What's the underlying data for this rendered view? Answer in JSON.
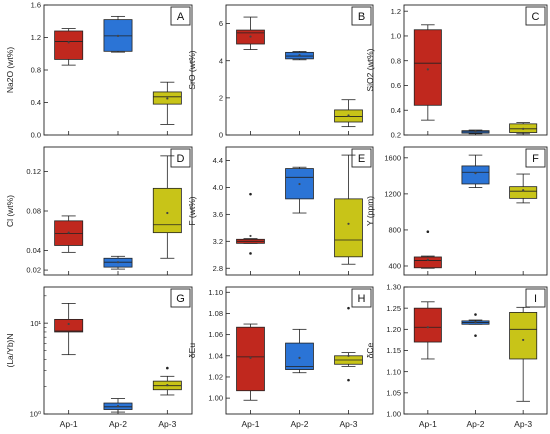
{
  "colors": {
    "Ap-1": "#c0281e",
    "Ap-2": "#2b74d6",
    "Ap-3": "#c8c418"
  },
  "categories": [
    "Ap-1",
    "Ap-2",
    "Ap-3"
  ],
  "chart_data": [
    {
      "type": "box",
      "letter": "A",
      "ylabel": "Na2O (wt%)",
      "scale": "linear",
      "ylim": [
        0,
        1.6
      ],
      "yticks": [
        0.0,
        0.4,
        0.8,
        1.2,
        1.6
      ],
      "tick_labels": [
        "0.0",
        "0.4",
        "0.8",
        "1.2",
        "1.6"
      ],
      "categories": [
        "Ap-1",
        "Ap-2",
        "Ap-3"
      ],
      "boxes": [
        {
          "category": "Ap-1",
          "whisker_low": 0.86,
          "q1": 0.93,
          "median": 1.15,
          "q3": 1.28,
          "whisker_high": 1.31,
          "mean": 1.14,
          "outliers": []
        },
        {
          "category": "Ap-2",
          "whisker_low": 1.02,
          "q1": 1.03,
          "median": 1.22,
          "q3": 1.42,
          "whisker_high": 1.46,
          "mean": 1.22,
          "outliers": []
        },
        {
          "category": "Ap-3",
          "whisker_low": 0.13,
          "q1": 0.38,
          "median": 0.47,
          "q3": 0.53,
          "whisker_high": 0.65,
          "mean": 0.45,
          "outliers": []
        }
      ]
    },
    {
      "type": "box",
      "letter": "B",
      "ylabel": "SrO (wt%)",
      "scale": "linear",
      "ylim": [
        0,
        7
      ],
      "yticks": [
        0,
        2,
        4,
        6
      ],
      "tick_labels": [
        "0",
        "2",
        "4",
        "6"
      ],
      "categories": [
        "Ap-1",
        "Ap-2",
        "Ap-3"
      ],
      "boxes": [
        {
          "category": "Ap-1",
          "whisker_low": 4.6,
          "q1": 4.9,
          "median": 5.5,
          "q3": 5.65,
          "whisker_high": 6.35,
          "mean": 5.3,
          "outliers": []
        },
        {
          "category": "Ap-2",
          "whisker_low": 4.05,
          "q1": 4.1,
          "median": 4.25,
          "q3": 4.45,
          "whisker_high": 4.5,
          "mean": 4.3,
          "outliers": []
        },
        {
          "category": "Ap-3",
          "whisker_low": 0.45,
          "q1": 0.7,
          "median": 1.0,
          "q3": 1.35,
          "whisker_high": 1.9,
          "mean": 1.05,
          "outliers": []
        }
      ]
    },
    {
      "type": "box",
      "letter": "C",
      "ylabel": "SiO2 (wt%)",
      "scale": "linear",
      "ylim": [
        0.2,
        1.25
      ],
      "yticks": [
        0.2,
        0.4,
        0.6,
        0.8,
        1.0,
        1.2
      ],
      "tick_labels": [
        "0.2",
        "0.4",
        "0.6",
        "0.8",
        "1.0",
        "1.2"
      ],
      "categories": [
        "Ap-1",
        "Ap-2",
        "Ap-3"
      ],
      "boxes": [
        {
          "category": "Ap-1",
          "whisker_low": 0.32,
          "q1": 0.44,
          "median": 0.78,
          "q3": 1.05,
          "whisker_high": 1.09,
          "mean": 0.73,
          "outliers": []
        },
        {
          "category": "Ap-2",
          "whisker_low": 0.21,
          "q1": 0.215,
          "median": 0.225,
          "q3": 0.235,
          "whisker_high": 0.24,
          "mean": 0.23,
          "outliers": []
        },
        {
          "category": "Ap-3",
          "whisker_low": 0.21,
          "q1": 0.22,
          "median": 0.25,
          "q3": 0.29,
          "whisker_high": 0.3,
          "mean": 0.25,
          "outliers": []
        }
      ]
    },
    {
      "type": "box",
      "letter": "D",
      "ylabel": "Cl (wt%)",
      "scale": "linear",
      "ylim": [
        0.015,
        0.145
      ],
      "yticks": [
        0.02,
        0.04,
        0.08,
        0.12
      ],
      "tick_labels": [
        "0.02",
        "0.04",
        "0.08",
        "0.12"
      ],
      "categories": [
        "Ap-1",
        "Ap-2",
        "Ap-3"
      ],
      "boxes": [
        {
          "category": "Ap-1",
          "whisker_low": 0.038,
          "q1": 0.045,
          "median": 0.057,
          "q3": 0.07,
          "whisker_high": 0.075,
          "mean": 0.058,
          "outliers": []
        },
        {
          "category": "Ap-2",
          "whisker_low": 0.021,
          "q1": 0.023,
          "median": 0.028,
          "q3": 0.032,
          "whisker_high": 0.034,
          "mean": 0.028,
          "outliers": []
        },
        {
          "category": "Ap-3",
          "whisker_low": 0.032,
          "q1": 0.058,
          "median": 0.066,
          "q3": 0.103,
          "whisker_high": 0.136,
          "mean": 0.078,
          "outliers": []
        }
      ]
    },
    {
      "type": "box",
      "letter": "E",
      "ylabel": "F (wt%)",
      "scale": "linear",
      "ylim": [
        2.7,
        4.6
      ],
      "yticks": [
        2.8,
        3.2,
        3.6,
        4.0,
        4.4
      ],
      "tick_labels": [
        "2.8",
        "3.2",
        "3.6",
        "4.0",
        "4.4"
      ],
      "categories": [
        "Ap-1",
        "Ap-2",
        "Ap-3"
      ],
      "boxes": [
        {
          "category": "Ap-1",
          "whisker_low": 3.17,
          "q1": 3.17,
          "median": 3.2,
          "q3": 3.23,
          "whisker_high": 3.24,
          "mean": 3.28,
          "outliers": [
            3.9,
            3.02
          ]
        },
        {
          "category": "Ap-2",
          "whisker_low": 3.62,
          "q1": 3.83,
          "median": 4.15,
          "q3": 4.28,
          "whisker_high": 4.3,
          "mean": 4.05,
          "outliers": []
        },
        {
          "category": "Ap-3",
          "whisker_low": 2.86,
          "q1": 2.97,
          "median": 3.22,
          "q3": 3.83,
          "whisker_high": 4.48,
          "mean": 3.46,
          "outliers": []
        }
      ]
    },
    {
      "type": "box",
      "letter": "F",
      "ylabel": "Y (ppm)",
      "scale": "linear",
      "ylim": [
        300,
        1720
      ],
      "yticks": [
        400,
        800,
        1200,
        1600
      ],
      "tick_labels": [
        "400",
        "800",
        "1200",
        "1600"
      ],
      "categories": [
        "Ap-1",
        "Ap-2",
        "Ap-3"
      ],
      "boxes": [
        {
          "category": "Ap-1",
          "whisker_low": 375,
          "q1": 380,
          "median": 460,
          "q3": 500,
          "whisker_high": 510,
          "mean": 470,
          "outliers": [
            780
          ]
        },
        {
          "category": "Ap-2",
          "whisker_low": 1270,
          "q1": 1310,
          "median": 1440,
          "q3": 1510,
          "whisker_high": 1630,
          "mean": 1430,
          "outliers": []
        },
        {
          "category": "Ap-3",
          "whisker_low": 1100,
          "q1": 1150,
          "median": 1230,
          "q3": 1280,
          "whisker_high": 1420,
          "mean": 1240,
          "outliers": []
        }
      ]
    },
    {
      "type": "box",
      "letter": "G",
      "ylabel": "(La/Yb)N",
      "scale": "log",
      "ylim": [
        1,
        25
      ],
      "yticks": [
        1,
        10
      ],
      "tick_labels": [
        "10⁰",
        "10¹"
      ],
      "categories": [
        "Ap-1",
        "Ap-2",
        "Ap-3"
      ],
      "boxes": [
        {
          "category": "Ap-1",
          "whisker_low": 4.5,
          "q1": 8.0,
          "median": 8.2,
          "q3": 11.0,
          "whisker_high": 16.5,
          "mean": 9.8,
          "outliers": []
        },
        {
          "category": "Ap-2",
          "whisker_low": 1.05,
          "q1": 1.12,
          "median": 1.2,
          "q3": 1.32,
          "whisker_high": 1.48,
          "mean": 1.22,
          "outliers": []
        },
        {
          "category": "Ap-3",
          "whisker_low": 1.62,
          "q1": 1.85,
          "median": 2.05,
          "q3": 2.3,
          "whisker_high": 2.6,
          "mean": 2.08,
          "outliers": [
            3.2
          ]
        }
      ]
    },
    {
      "type": "box",
      "letter": "H",
      "ylabel": "δEu",
      "scale": "linear",
      "ylim": [
        0.985,
        1.105
      ],
      "yticks": [
        1.0,
        1.02,
        1.04,
        1.06,
        1.08,
        1.1
      ],
      "tick_labels": [
        "1.00",
        "1.02",
        "1.04",
        "1.06",
        "1.08",
        "1.10"
      ],
      "categories": [
        "Ap-1",
        "Ap-2",
        "Ap-3"
      ],
      "boxes": [
        {
          "category": "Ap-1",
          "whisker_low": 0.998,
          "q1": 1.007,
          "median": 1.039,
          "q3": 1.067,
          "whisker_high": 1.07,
          "mean": 1.038,
          "outliers": []
        },
        {
          "category": "Ap-2",
          "whisker_low": 1.024,
          "q1": 1.027,
          "median": 1.03,
          "q3": 1.052,
          "whisker_high": 1.065,
          "mean": 1.038,
          "outliers": []
        },
        {
          "category": "Ap-3",
          "whisker_low": 1.03,
          "q1": 1.032,
          "median": 1.036,
          "q3": 1.04,
          "whisker_high": 1.043,
          "mean": 1.04,
          "outliers": [
            1.085,
            1.017
          ]
        }
      ]
    },
    {
      "type": "box",
      "letter": "I",
      "ylabel": "δCe",
      "scale": "linear",
      "ylim": [
        1.0,
        1.3
      ],
      "yticks": [
        1.0,
        1.05,
        1.1,
        1.15,
        1.2,
        1.25,
        1.3
      ],
      "tick_labels": [
        "1.00",
        "1.05",
        "1.10",
        "1.15",
        "1.20",
        "1.25",
        "1.30"
      ],
      "categories": [
        "Ap-1",
        "Ap-2",
        "Ap-3"
      ],
      "boxes": [
        {
          "category": "Ap-1",
          "whisker_low": 1.13,
          "q1": 1.17,
          "median": 1.205,
          "q3": 1.25,
          "whisker_high": 1.265,
          "mean": 1.205,
          "outliers": []
        },
        {
          "category": "Ap-2",
          "whisker_low": 1.212,
          "q1": 1.212,
          "median": 1.216,
          "q3": 1.22,
          "whisker_high": 1.222,
          "mean": 1.217,
          "outliers": [
            1.235,
            1.185
          ]
        },
        {
          "category": "Ap-3",
          "whisker_low": 1.03,
          "q1": 1.13,
          "median": 1.2,
          "q3": 1.24,
          "whisker_high": 1.252,
          "mean": 1.175,
          "outliers": []
        }
      ]
    }
  ]
}
